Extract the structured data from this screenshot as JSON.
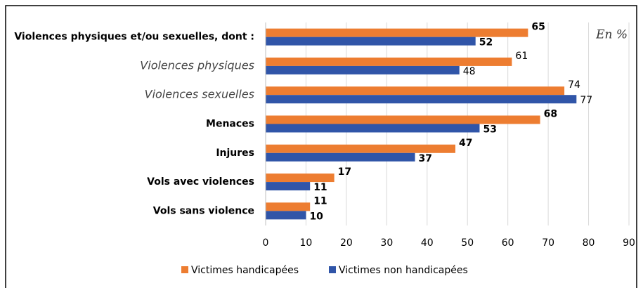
{
  "chart_data": {
    "type": "hbar",
    "unit_note": "En %",
    "categories": [
      "Violences physiques et/ou sexuelles, dont :",
      "Violences physiques",
      "Violences sexuelles",
      "Menaces",
      "Injures",
      "Vols avec violences",
      "Vols sans violence"
    ],
    "category_styles": [
      "bold",
      "italic",
      "italic",
      "bold",
      "bold",
      "bold",
      "bold"
    ],
    "series": [
      {
        "name": "Victimes handicapées",
        "color": "#ed7d31",
        "values": [
          65,
          61,
          74,
          68,
          47,
          17,
          11
        ]
      },
      {
        "name": "Victimes non handicapées",
        "color": "#3055a8",
        "values": [
          52,
          48,
          77,
          53,
          37,
          11,
          10
        ]
      }
    ],
    "xlim": [
      0,
      90
    ],
    "xticks": [
      0,
      10,
      20,
      30,
      40,
      50,
      60,
      70,
      80,
      90
    ],
    "grid": true
  }
}
